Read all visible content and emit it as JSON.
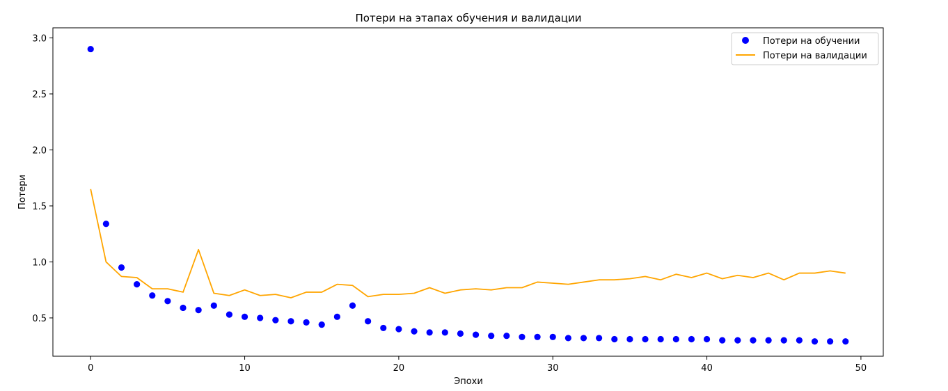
{
  "chart_data": {
    "type": "line",
    "title": "Потери на этапах обучения и валидации",
    "xlabel": "Эпохи",
    "ylabel": "Потери",
    "xlim": [
      -2.45,
      51.45
    ],
    "ylim": [
      0.158,
      3.09
    ],
    "xticks": [
      0,
      10,
      20,
      30,
      40,
      50
    ],
    "yticks": [
      0.5,
      1.0,
      1.5,
      2.0,
      2.5,
      3.0
    ],
    "xtick_labels": [
      "0",
      "10",
      "20",
      "30",
      "40",
      "50"
    ],
    "ytick_labels": [
      "0.5",
      "1.0",
      "1.5",
      "2.0",
      "2.5",
      "3.0"
    ],
    "grid": false,
    "legend_position": "upper right",
    "x": [
      0,
      1,
      2,
      3,
      4,
      5,
      6,
      7,
      8,
      9,
      10,
      11,
      12,
      13,
      14,
      15,
      16,
      17,
      18,
      19,
      20,
      21,
      22,
      23,
      24,
      25,
      26,
      27,
      28,
      29,
      30,
      31,
      32,
      33,
      34,
      35,
      36,
      37,
      38,
      39,
      40,
      41,
      42,
      43,
      44,
      45,
      46,
      47,
      48,
      49
    ],
    "series": [
      {
        "name": "Потери на обучении",
        "kind": "scatter",
        "color": "#0000ff",
        "values": [
          2.9,
          1.34,
          0.95,
          0.8,
          0.7,
          0.65,
          0.59,
          0.57,
          0.61,
          0.53,
          0.51,
          0.5,
          0.48,
          0.47,
          0.46,
          0.44,
          0.51,
          0.61,
          0.47,
          0.41,
          0.4,
          0.38,
          0.37,
          0.37,
          0.36,
          0.35,
          0.34,
          0.34,
          0.33,
          0.33,
          0.33,
          0.32,
          0.32,
          0.32,
          0.31,
          0.31,
          0.31,
          0.31,
          0.31,
          0.31,
          0.31,
          0.3,
          0.3,
          0.3,
          0.3,
          0.3,
          0.3,
          0.29,
          0.29,
          0.29
        ]
      },
      {
        "name": "Потери на валидации",
        "kind": "line",
        "color": "#ffa500",
        "values": [
          1.65,
          1.0,
          0.87,
          0.86,
          0.76,
          0.76,
          0.73,
          1.11,
          0.72,
          0.7,
          0.75,
          0.7,
          0.71,
          0.68,
          0.73,
          0.73,
          0.8,
          0.79,
          0.69,
          0.71,
          0.71,
          0.72,
          0.77,
          0.72,
          0.75,
          0.76,
          0.75,
          0.77,
          0.77,
          0.82,
          0.81,
          0.8,
          0.82,
          0.84,
          0.84,
          0.85,
          0.87,
          0.84,
          0.89,
          0.86,
          0.9,
          0.85,
          0.88,
          0.86,
          0.9,
          0.84,
          0.9,
          0.9,
          0.92,
          0.9
        ]
      }
    ]
  }
}
